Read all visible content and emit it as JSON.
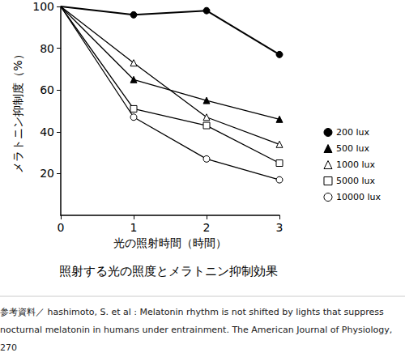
{
  "chart_data": {
    "type": "line",
    "title": "照射する光の照度とメラトニン抑制効果",
    "x_label": "光の照射時間（時間）",
    "y_label": "メラトニン抑制度（%）",
    "source": "参考資料／ hashimoto, S. et al : Melatonin rhythm is not shifted by lights that suppress nocturnal melatonin in humans under entrainment. The American Journal of Physiology,270",
    "x": [
      0,
      1,
      2,
      3
    ],
    "xlim": [
      0,
      3
    ],
    "xticks": [
      0,
      1,
      2,
      3
    ],
    "ylim": [
      0,
      100
    ],
    "yticks": [
      20,
      40,
      60,
      80,
      100
    ],
    "grid": false,
    "legend": "right",
    "series": [
      {
        "name": "200 lux",
        "color": "#000000",
        "marker": "filled-circle",
        "values": [
          100,
          96,
          98,
          77
        ]
      },
      {
        "name": "500 lux",
        "color": "#000000",
        "marker": "filled-triangle",
        "values": [
          100,
          65,
          55,
          46
        ]
      },
      {
        "name": "1000 lux",
        "color": "#000000",
        "marker": "open-triangle",
        "values": [
          100,
          73,
          47,
          34
        ]
      },
      {
        "name": "5000 lux",
        "color": "#000000",
        "marker": "open-square",
        "values": [
          100,
          51,
          43,
          25
        ]
      },
      {
        "name": "10000 lux",
        "color": "#000000",
        "marker": "open-circle",
        "values": [
          100,
          47,
          27,
          17
        ]
      }
    ]
  }
}
